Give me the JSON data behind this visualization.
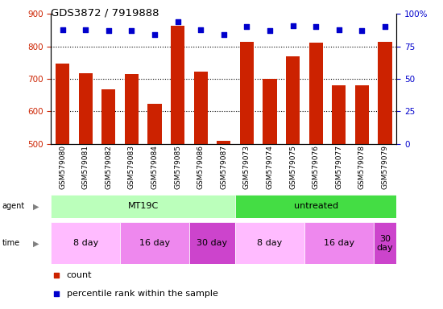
{
  "title": "GDS3872 / 7919888",
  "samples": [
    "GSM579080",
    "GSM579081",
    "GSM579082",
    "GSM579083",
    "GSM579084",
    "GSM579085",
    "GSM579086",
    "GSM579087",
    "GSM579073",
    "GSM579074",
    "GSM579075",
    "GSM579076",
    "GSM579077",
    "GSM579078",
    "GSM579079"
  ],
  "counts": [
    748,
    717,
    668,
    714,
    624,
    863,
    721,
    510,
    814,
    700,
    770,
    812,
    680,
    680,
    814
  ],
  "percentiles": [
    88,
    88,
    87,
    87,
    84,
    94,
    88,
    84,
    90,
    87,
    91,
    90,
    88,
    87,
    90
  ],
  "ylim_left": [
    500,
    900
  ],
  "ylim_right": [
    0,
    100
  ],
  "yticks_left": [
    500,
    600,
    700,
    800,
    900
  ],
  "yticks_right": [
    0,
    25,
    50,
    75,
    100
  ],
  "bar_color": "#cc2200",
  "dot_color": "#0000cc",
  "grid_color": "#000000",
  "agent_groups": [
    {
      "label": "MT19C",
      "start": 0,
      "end": 8,
      "color": "#bbffbb"
    },
    {
      "label": "untreated",
      "start": 8,
      "end": 15,
      "color": "#44dd44"
    }
  ],
  "time_groups": [
    {
      "label": "8 day",
      "start": 0,
      "end": 3,
      "color": "#ffbbff"
    },
    {
      "label": "16 day",
      "start": 3,
      "end": 6,
      "color": "#ee88ee"
    },
    {
      "label": "30 day",
      "start": 6,
      "end": 8,
      "color": "#cc44cc"
    },
    {
      "label": "8 day",
      "start": 8,
      "end": 11,
      "color": "#ffbbff"
    },
    {
      "label": "16 day",
      "start": 11,
      "end": 14,
      "color": "#ee88ee"
    },
    {
      "label": "30 day",
      "start": 14,
      "end": 15,
      "color": "#cc44cc"
    }
  ],
  "legend_count_color": "#cc2200",
  "legend_dot_color": "#0000cc",
  "bg_color": "#ffffff",
  "tick_label_color_left": "#cc2200",
  "tick_label_color_right": "#0000cc",
  "right_axis_top_label": "100%"
}
